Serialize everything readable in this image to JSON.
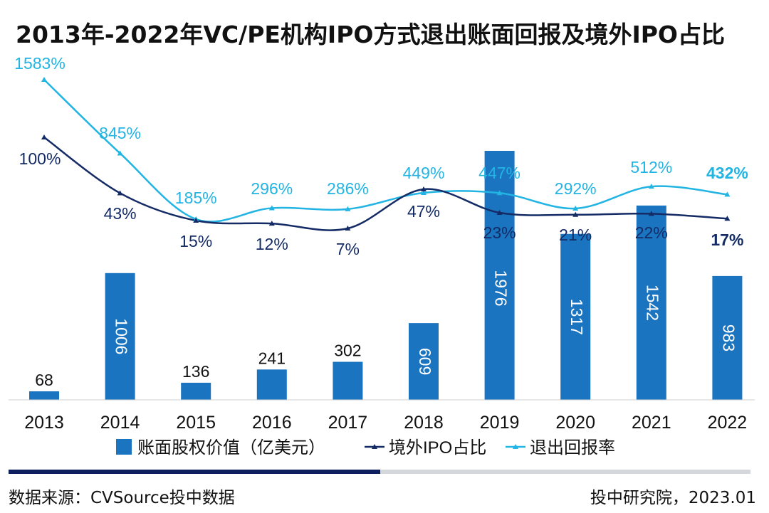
{
  "chart_data": {
    "type": "bar",
    "title": "2013年-2022年VC/PE机构IPO方式退出账面回报及境外IPO占比",
    "categories": [
      "2013",
      "2014",
      "2015",
      "2016",
      "2017",
      "2018",
      "2019",
      "2020",
      "2021",
      "2022"
    ],
    "series": [
      {
        "name": "账面股权价值（亿美元）",
        "type": "bar",
        "color": "#1a74c0",
        "values": [
          68,
          1006,
          136,
          241,
          302,
          609,
          1976,
          1317,
          1542,
          983
        ],
        "labels": [
          "68",
          "1006",
          "136",
          "241",
          "302",
          "609",
          "1976",
          "1317",
          "1542",
          "983"
        ]
      },
      {
        "name": "境外IPO占比",
        "type": "line",
        "color": "#142b66",
        "values": [
          100,
          43,
          15,
          12,
          7,
          47,
          23,
          21,
          22,
          17
        ],
        "labels": [
          "100%",
          "43%",
          "15%",
          "12%",
          "7%",
          "47%",
          "23%",
          "21%",
          "22%",
          "17%"
        ]
      },
      {
        "name": "退出回报率",
        "type": "line",
        "color": "#22b4e3",
        "values": [
          1583,
          845,
          185,
          296,
          286,
          449,
          447,
          292,
          512,
          432
        ],
        "labels": [
          "1583%",
          "845%",
          "185%",
          "296%",
          "286%",
          "449%",
          "447%",
          "292%",
          "512%",
          "432%"
        ]
      }
    ],
    "legend_position": "bottom"
  },
  "footer": {
    "source": "数据来源：CVSource投中数据",
    "credit": "投中研究院，2023.01"
  }
}
